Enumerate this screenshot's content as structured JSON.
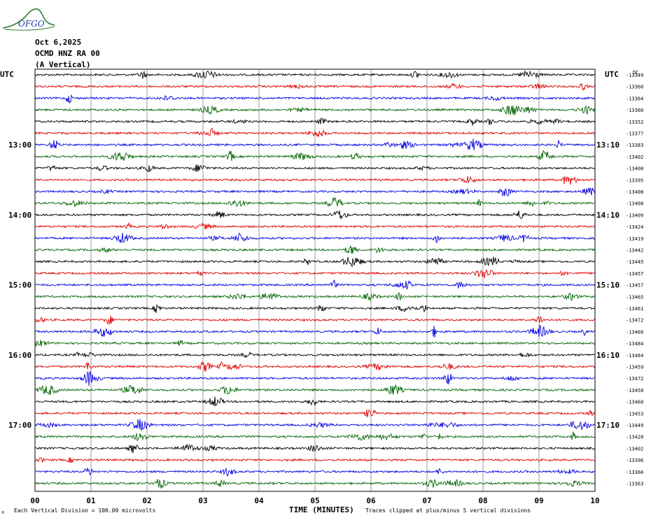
{
  "header": {
    "date": "Oct 6,2025",
    "station": "OCMD HNZ RA 00",
    "component": "(A Vertical)",
    "logo_text": "OFGO"
  },
  "footer": {
    "scale_note": "Each Vertical Division =  100.00 microvolts",
    "clip_note": "Traces clipped at plus/minus 5 vertical divisions",
    "corner_mark": "∧"
  },
  "chart_data": {
    "type": "line",
    "title": "",
    "xlabel": "TIME (MINUTES)",
    "ylabel": "",
    "x_ticks": [
      "00",
      "01",
      "02",
      "03",
      "04",
      "05",
      "06",
      "07",
      "08",
      "09",
      "10"
    ],
    "xlim": [
      0,
      10
    ],
    "grid": "vertical lines at each minute",
    "left_axis_label": "UTC",
    "right_axis_label": "UTC",
    "left_time_labels": [
      {
        "row": 6,
        "label": "13:00"
      },
      {
        "row": 12,
        "label": "14:00"
      },
      {
        "row": 18,
        "label": "15:00"
      },
      {
        "row": 24,
        "label": "16:00"
      },
      {
        "row": 30,
        "label": "17:00"
      }
    ],
    "right_time_labels": [
      {
        "row": 6,
        "label": "13:10"
      },
      {
        "row": 12,
        "label": "14:10"
      },
      {
        "row": 18,
        "label": "15:10"
      },
      {
        "row": 24,
        "label": "16:10"
      },
      {
        "row": 30,
        "label": "17:10"
      }
    ],
    "top_right_note": "DC",
    "trace_colors": [
      "#000000",
      "#e00000",
      "#0000e0",
      "#006400"
    ],
    "rows": [
      {
        "offset": "-13349"
      },
      {
        "offset": "-13360"
      },
      {
        "offset": "-13364"
      },
      {
        "offset": "-13366"
      },
      {
        "offset": "-13352"
      },
      {
        "offset": "-13377"
      },
      {
        "offset": "-13383"
      },
      {
        "offset": "-13402"
      },
      {
        "offset": "-13400"
      },
      {
        "offset": "-13395"
      },
      {
        "offset": "-13408"
      },
      {
        "offset": "-13408"
      },
      {
        "offset": "-13409"
      },
      {
        "offset": "-13424"
      },
      {
        "offset": "-13419"
      },
      {
        "offset": "-13442"
      },
      {
        "offset": "-13445"
      },
      {
        "offset": "-13457"
      },
      {
        "offset": "-13457"
      },
      {
        "offset": "-13465"
      },
      {
        "offset": "-13461"
      },
      {
        "offset": "-13472"
      },
      {
        "offset": "-13460"
      },
      {
        "offset": "-13484"
      },
      {
        "offset": "-13484"
      },
      {
        "offset": "-13459"
      },
      {
        "offset": "-13472"
      },
      {
        "offset": "-13450"
      },
      {
        "offset": "-13460"
      },
      {
        "offset": "-13453"
      },
      {
        "offset": "-13449"
      },
      {
        "offset": "-13420"
      },
      {
        "offset": "-13402"
      },
      {
        "offset": "-13396"
      },
      {
        "offset": "-13366"
      },
      {
        "offset": "-13363"
      }
    ]
  }
}
